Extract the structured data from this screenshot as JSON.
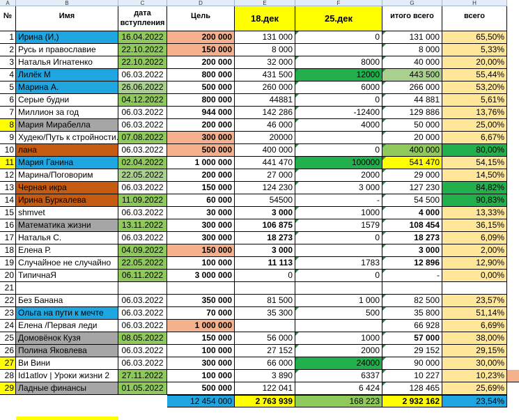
{
  "colors": {
    "blue": "#1fa6e0",
    "green": "#8fc95c",
    "salmon": "#f4b18c",
    "yellow": "#ffff00",
    "bright_green": "#21b04b",
    "light_green": "#a9d08e",
    "gray": "#a6a6a6",
    "orange_brown": "#c55a11",
    "cream": "#ffe699",
    "header_yellow": "#ffff00",
    "totals_blue": "#1fa6e0"
  },
  "column_letters": [
    "A",
    "B",
    "C",
    "D",
    "E",
    "F",
    "G",
    "H"
  ],
  "header": {
    "num": "№",
    "name": "Имя",
    "date": "дата вступления",
    "goal": "Цель",
    "d18": "18.дек",
    "d25": "25.дек",
    "total": "итого всего",
    "pct": "всего"
  },
  "rows": [
    {
      "n": "1",
      "name": "Ирина (И,)",
      "date": "16.04.2022",
      "goal": "200 000",
      "d18": "131 000",
      "d25": "0",
      "total": "131 000",
      "pct": "65,50%"
    },
    {
      "n": "2",
      "name": "Русь и православие",
      "date": "22.10.2022",
      "goal": "150 000",
      "d18": "8 000",
      "d25": "",
      "total": "8 000",
      "pct": "5,33%"
    },
    {
      "n": "3",
      "name": "Наталья Игнатенко",
      "date": "22.10.2022",
      "goal": "200 000",
      "d18": "32 000",
      "d25": "8000",
      "total": "40 000",
      "pct": "20,00%"
    },
    {
      "n": "4",
      "name": "Лилёк М",
      "date": "06.03.2022",
      "goal": "800 000",
      "d18": "431 500",
      "d25": "12000",
      "total": "443 500",
      "pct": "55,44%"
    },
    {
      "n": "5",
      "name": "Марина А.",
      "date": "26.06.2022",
      "goal": "500 000",
      "d18": "260 000",
      "d25": "6000",
      "total": "266 000",
      "pct": "53,20%"
    },
    {
      "n": "6",
      "name": "Серые будни",
      "date": "04.12.2022",
      "goal": "800 000",
      "d18": "44881",
      "d25": "0",
      "total": "44 881",
      "pct": "5,61%"
    },
    {
      "n": "7",
      "name": "Миллион за год",
      "date": "06.03.2022",
      "goal": "944 000",
      "d18": "142 286",
      "d25": "-12400",
      "total": "129 886",
      "pct": "13,76%"
    },
    {
      "n": "8",
      "name": "Мария Мирабелла",
      "date": "06.03.2022",
      "goal": "200 000",
      "d18": "46 000",
      "d25": "4000",
      "total": "50 000",
      "pct": "25,00%"
    },
    {
      "n": "9",
      "name": "Худею/Путь к стройности.",
      "date": "07.08.2022",
      "goal": "300 000",
      "d18": "20000",
      "d25": "",
      "total": "20 000",
      "pct": "6,67%"
    },
    {
      "n": "10",
      "name": "лана",
      "date": "06.03.2022",
      "goal": "500 000",
      "d18": "400 000",
      "d25": "0",
      "total": "400 000",
      "pct": "80,00%"
    },
    {
      "n": "11",
      "name": "Мария Ганина",
      "date": "02.04.2022",
      "goal": "1 000 000",
      "d18": "441 470",
      "d25": "100000",
      "total": "541 470",
      "pct": "54,15%"
    },
    {
      "n": "12",
      "name": "Марина/Поговорим",
      "date": "22.05.2022",
      "goal": "200 000",
      "d18": "27 000",
      "d25": "2000",
      "total": "29 000",
      "pct": "14,50%"
    },
    {
      "n": "13",
      "name": "Черная икра",
      "date": "06.03.2022",
      "goal": "150 000",
      "d18": "124 230",
      "d25": "3 000",
      "total": "127 230",
      "pct": "84,82%"
    },
    {
      "n": "14",
      "name": "Ирина Буркалева",
      "date": "11.09.2022",
      "goal": "60 000",
      "d18": "54500",
      "d25": "-",
      "total": "54 500",
      "pct": "90,83%"
    },
    {
      "n": "15",
      "name": "shmvet",
      "date": "06.03.2022",
      "goal": "30 000",
      "d18": "3 000",
      "d25": "1000",
      "total": "4 000",
      "pct": "13,33%"
    },
    {
      "n": "16",
      "name": "Математика жизни",
      "date": "13.11.2022",
      "goal": "300 000",
      "d18": "106 875",
      "d25": "1579",
      "total": "108 454",
      "pct": "36,15%"
    },
    {
      "n": "17",
      "name": "Наталья С.",
      "date": "06.03.2022",
      "goal": "300 000",
      "d18": "18 273",
      "d25": "0",
      "total": "18 273",
      "pct": "6,09%"
    },
    {
      "n": "18",
      "name": "Елена Р.",
      "date": "04.09.2022",
      "goal": "150 000",
      "d18": "3 000",
      "d25": "",
      "total": "3 000",
      "pct": "2,00%"
    },
    {
      "n": "19",
      "name": " Случайное не случайно",
      "date": "22.05.2022",
      "goal": "100 000",
      "d18": "11 113",
      "d25": "1783",
      "total": "12 896",
      "pct": "12,90%"
    },
    {
      "n": "20",
      "name": "ТипичнаЯ",
      "date": "06.11.2022",
      "goal": "3 000 000",
      "d18": "0",
      "d25": "0",
      "total": "-",
      "pct": "0,00%"
    },
    {
      "n": "21",
      "name": "",
      "date": "",
      "goal": "",
      "d18": "",
      "d25": "",
      "total": "",
      "pct": ""
    },
    {
      "n": "22",
      "name": "Без Банана",
      "date": "06.03.2022",
      "goal": "350 000",
      "d18": "81 500",
      "d25": "1 000",
      "total": "82 500",
      "pct": "23,57%"
    },
    {
      "n": "23",
      "name": "Ольга на пути к мечте",
      "date": "06.03.2022",
      "goal": "70 000",
      "d18": "35 300",
      "d25": "500",
      "total": "35 800",
      "pct": "51,14%"
    },
    {
      "n": "24",
      "name": "Елена  /Первая леди",
      "date": "06.03.2022",
      "goal": "1 000 000",
      "d18": "",
      "d25": "",
      "total": "66 928",
      "pct": "6,69%"
    },
    {
      "n": "25",
      "name": " Домовёнок Кузя",
      "date": "08.05.2022",
      "goal": "150 000",
      "d18": "56 000",
      "d25": "1000",
      "total": "57 000",
      "pct": "38,00%"
    },
    {
      "n": "26",
      "name": "Полина Яковлева",
      "date": "06.03.2022",
      "goal": "100 000",
      "d18": "27 152",
      "d25": "2000",
      "total": "29 152",
      "pct": "29,15%"
    },
    {
      "n": "27",
      "name": "Ви Вини",
      "date": "06.03.2022",
      "goal": "300 000",
      "d18": "66 000",
      "d25": "24000",
      "total": "90 000",
      "pct": "30,00%"
    },
    {
      "n": "28",
      "name": "Id1atlov |  Уроки жизни 2",
      "date": "27.11.2022",
      "goal": "100 000",
      "d18": "3 890",
      "d25": "6337",
      "total": "10 227",
      "pct": "10,23%"
    },
    {
      "n": "29",
      "name": "Ладные финансы",
      "date": "01.05.2022",
      "goal": "500 000",
      "d18": "122 041",
      "d25": "6 424",
      "total": "128 465",
      "pct": "25,69%"
    }
  ],
  "totals": {
    "goal": "12 454 000",
    "d18": "2 763 939",
    "d25": "168 223",
    "total": "2 932 162",
    "pct": "23,54%"
  }
}
